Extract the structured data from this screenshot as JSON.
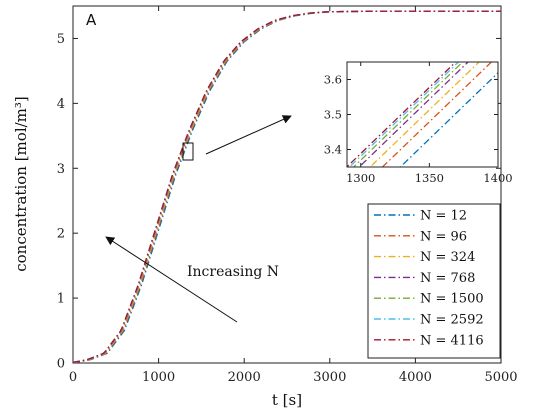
{
  "chart_data": {
    "type": "line",
    "panel_label": "A",
    "xlabel": "t [s]",
    "ylabel": "concentration [mol/m³]",
    "xlim": [
      0,
      5000
    ],
    "ylim": [
      0,
      5.5
    ],
    "xticks": [
      "0",
      "1000",
      "2000",
      "3000",
      "4000",
      "5000"
    ],
    "yticks": [
      "0",
      "1",
      "2",
      "3",
      "4",
      "5"
    ],
    "grid": false,
    "legend_position": "bottom-right",
    "line_style": "dash-dot",
    "annotation": "Increasing N",
    "series": [
      {
        "name": "N = 12",
        "color": "#0072BD",
        "t_shift": 0
      },
      {
        "name": "N = 96",
        "color": "#D95319",
        "t_shift": -13
      },
      {
        "name": "N = 324",
        "color": "#EDB120",
        "t_shift": -22
      },
      {
        "name": "N = 768",
        "color": "#7E2F8E",
        "t_shift": -30
      },
      {
        "name": "N = 1500",
        "color": "#77AC30",
        "t_shift": -34
      },
      {
        "name": "N = 2592",
        "color": "#4DBEEE",
        "t_shift": -37
      },
      {
        "name": "N = 4116",
        "color": "#A2142F",
        "t_shift": -39
      }
    ],
    "base_curve": {
      "t": [
        0,
        200,
        400,
        600,
        800,
        1000,
        1200,
        1400,
        1600,
        1800,
        2000,
        2200,
        2400,
        2600,
        2800,
        3000,
        3500,
        4000,
        5000
      ],
      "c": [
        0.0,
        0.05,
        0.15,
        0.5,
        1.2,
        2.05,
        2.9,
        3.6,
        4.2,
        4.65,
        4.95,
        5.15,
        5.28,
        5.35,
        5.39,
        5.41,
        5.42,
        5.42,
        5.42
      ]
    },
    "inset": {
      "xlim": [
        1290,
        1400
      ],
      "ylim": [
        3.35,
        3.65
      ],
      "xticks": [
        "1300",
        "1350",
        "1400"
      ],
      "yticks": [
        "3.4",
        "3.5",
        "3.6"
      ]
    }
  }
}
